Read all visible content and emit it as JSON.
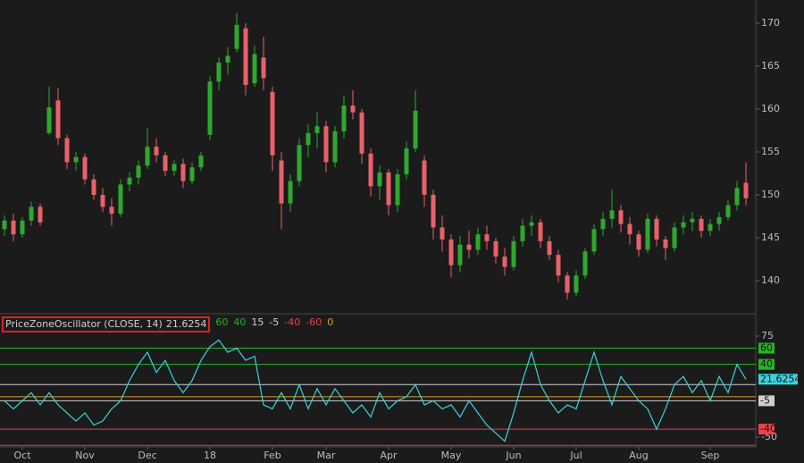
{
  "chart_data": [
    {
      "type": "candlestick",
      "up_color": "#2ea82e",
      "down_color": "#e8616a",
      "ylim": [
        136.25,
        172.7
      ],
      "yticks": [
        140,
        145,
        150,
        155,
        160,
        165,
        170
      ],
      "open": [
        146.0,
        147.0,
        145.4,
        147.0,
        148.6,
        157.2,
        161.0,
        156.6,
        153.8,
        154.4,
        151.8,
        150.0,
        148.6,
        147.8,
        151.2,
        152.0,
        153.4,
        155.6,
        154.6,
        152.8,
        153.6,
        151.6,
        153.2,
        157.0,
        163.2,
        165.4,
        167.0,
        169.4,
        163.0,
        166.0,
        162.0,
        154.0,
        149.0,
        151.6,
        155.8,
        157.2,
        158.0,
        153.8,
        157.4,
        160.4,
        159.6,
        154.8,
        151.0,
        152.6,
        148.8,
        152.4,
        155.4,
        154.0,
        150.0,
        146.2,
        144.8,
        141.8,
        144.2,
        143.6,
        145.4,
        144.6,
        142.8,
        141.6,
        144.6,
        146.4,
        146.8,
        144.6,
        143.0,
        140.6,
        138.6,
        140.6,
        143.4,
        146.0,
        147.2,
        148.2,
        146.6,
        145.4,
        143.6,
        147.2,
        144.8,
        143.8,
        146.2,
        146.8,
        147.2,
        145.8,
        146.6,
        147.4,
        148.8,
        151.4
      ],
      "high": [
        147.6,
        147.8,
        147.4,
        149.2,
        149.0,
        162.6,
        162.4,
        157.0,
        155.0,
        154.8,
        152.4,
        150.8,
        149.6,
        151.8,
        152.6,
        154.0,
        157.8,
        156.6,
        155.0,
        154.0,
        154.2,
        153.8,
        155.0,
        163.8,
        166.0,
        167.2,
        171.2,
        170.0,
        167.4,
        168.4,
        162.6,
        155.0,
        152.4,
        156.6,
        158.2,
        159.6,
        158.6,
        158.0,
        161.6,
        162.2,
        160.0,
        155.4,
        153.4,
        153.0,
        153.0,
        156.2,
        162.2,
        154.6,
        150.6,
        147.6,
        145.4,
        145.2,
        145.8,
        146.2,
        146.4,
        145.0,
        143.8,
        145.2,
        147.2,
        147.6,
        147.2,
        145.2,
        143.6,
        141.0,
        141.2,
        143.8,
        146.6,
        148.0,
        150.6,
        148.8,
        147.4,
        145.8,
        147.8,
        147.6,
        145.2,
        146.8,
        147.6,
        148.0,
        147.6,
        147.2,
        148.0,
        149.4,
        151.6,
        153.8
      ],
      "low": [
        145.2,
        144.6,
        145.0,
        146.4,
        146.4,
        157.0,
        155.8,
        153.0,
        152.8,
        151.2,
        149.4,
        148.0,
        146.4,
        147.4,
        150.4,
        151.2,
        153.0,
        153.8,
        152.2,
        152.2,
        150.8,
        151.2,
        152.8,
        156.4,
        162.2,
        164.0,
        166.6,
        161.6,
        162.6,
        162.2,
        152.8,
        146.0,
        148.0,
        151.0,
        154.4,
        155.4,
        152.6,
        153.2,
        156.6,
        158.8,
        153.6,
        149.8,
        149.4,
        147.6,
        148.0,
        151.8,
        155.0,
        148.6,
        144.8,
        143.4,
        140.4,
        141.0,
        142.6,
        143.0,
        143.6,
        142.0,
        140.6,
        141.2,
        144.0,
        145.2,
        143.8,
        142.4,
        139.8,
        137.8,
        138.2,
        140.2,
        143.0,
        145.2,
        146.2,
        145.6,
        144.2,
        142.8,
        143.2,
        144.0,
        142.4,
        143.4,
        145.4,
        145.8,
        145.0,
        145.2,
        145.8,
        147.0,
        148.2,
        148.8
      ],
      "close": [
        147.0,
        145.4,
        147.0,
        148.6,
        146.8,
        160.2,
        156.6,
        153.8,
        154.4,
        151.8,
        150.0,
        148.6,
        147.8,
        151.2,
        152.0,
        153.4,
        155.6,
        154.6,
        152.8,
        153.6,
        151.6,
        153.2,
        154.6,
        163.2,
        165.4,
        166.2,
        169.8,
        162.8,
        166.4,
        163.6,
        154.6,
        149.0,
        151.6,
        155.8,
        157.2,
        158.0,
        153.8,
        157.4,
        160.4,
        159.6,
        154.8,
        151.0,
        152.6,
        148.8,
        152.4,
        155.4,
        159.8,
        150.0,
        146.2,
        144.8,
        141.8,
        144.2,
        143.6,
        145.4,
        144.6,
        142.8,
        141.6,
        144.6,
        146.4,
        146.8,
        144.6,
        143.0,
        140.6,
        138.6,
        140.6,
        143.4,
        146.0,
        147.2,
        148.2,
        146.6,
        145.4,
        143.6,
        147.2,
        144.8,
        143.8,
        146.2,
        146.8,
        147.2,
        145.8,
        146.6,
        147.4,
        148.8,
        150.8,
        149.6
      ]
    },
    {
      "type": "line",
      "title": "PriceZoneOscillator (CLOSE, 14)",
      "color": "#3cd2dc",
      "ylim": [
        -62,
        81.6
      ],
      "yticks": [
        75,
        -50
      ],
      "values": [
        -5,
        -15,
        -5,
        5,
        -10,
        5,
        -10,
        -20,
        -30,
        -20,
        -35,
        -30,
        -15,
        -5,
        20,
        40,
        55,
        30,
        45,
        20,
        5,
        20,
        45,
        62,
        70,
        55,
        60,
        45,
        50,
        -10,
        -15,
        5,
        -15,
        15,
        -15,
        10,
        -10,
        10,
        -5,
        -20,
        -10,
        -25,
        5,
        -15,
        -5,
        0,
        15,
        -10,
        -5,
        -15,
        -10,
        -25,
        -5,
        -20,
        -35,
        -45,
        -55,
        -20,
        20,
        55,
        15,
        -5,
        -20,
        -10,
        -15,
        20,
        55,
        20,
        -10,
        25,
        10,
        -5,
        -15,
        -40,
        -15,
        15,
        25,
        5,
        20,
        -5,
        25,
        5,
        40,
        21.6254
      ],
      "levels": [
        {
          "value": 60,
          "color": "#27b327",
          "boxed": true
        },
        {
          "value": 40,
          "color": "#27b327",
          "boxed": true
        },
        {
          "value": 15,
          "color": "#cfcfcf",
          "boxed": false
        },
        {
          "value": -5,
          "color": "#cfcfcf",
          "boxed": true
        },
        {
          "value": -40,
          "color": "#e8424a",
          "boxed": true
        },
        {
          "value": -60,
          "color": "#e8424a",
          "boxed": false
        },
        {
          "value": 0,
          "color": "#e0a020",
          "boxed": false
        }
      ],
      "xticks": [
        {
          "value": 2,
          "label": "Oct"
        },
        {
          "value": 9,
          "label": "Nov"
        },
        {
          "value": 16,
          "label": "Dec"
        },
        {
          "value": 23,
          "label": "18"
        },
        {
          "value": 30,
          "label": "Feb"
        },
        {
          "value": 36,
          "label": "Mar"
        },
        {
          "value": 43,
          "label": "Apr"
        },
        {
          "value": 50,
          "label": "May"
        },
        {
          "value": 57,
          "label": "Jun"
        },
        {
          "value": 64,
          "label": "Jul"
        },
        {
          "value": 71,
          "label": "Aug"
        },
        {
          "value": 79,
          "label": "Sep"
        }
      ]
    }
  ]
}
